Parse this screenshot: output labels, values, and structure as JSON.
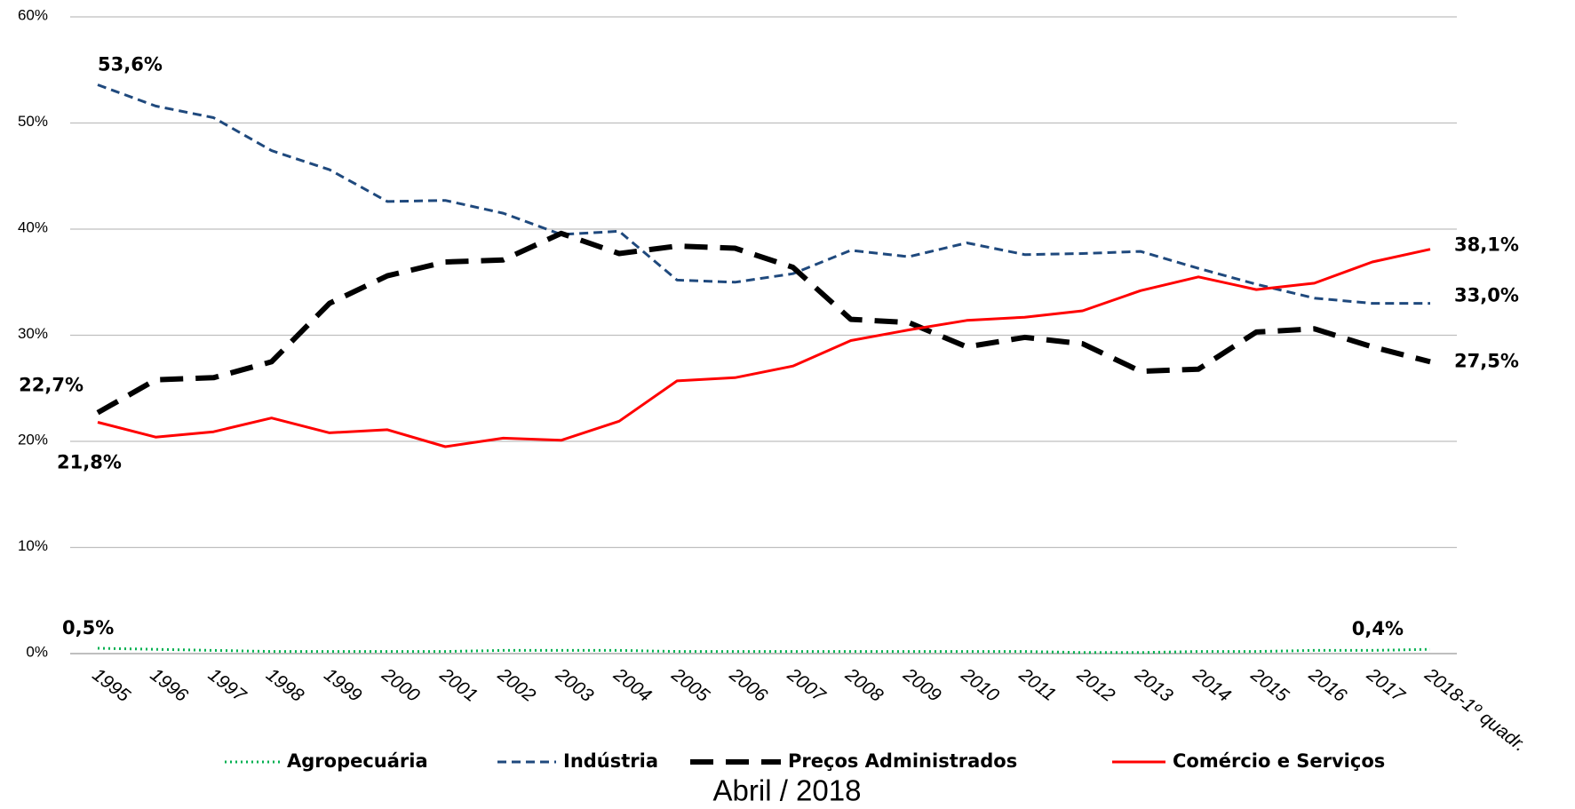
{
  "chart_data": {
    "type": "line",
    "caption": "Abril / 2018",
    "categories": [
      "1995",
      "1996",
      "1997",
      "1998",
      "1999",
      "2000",
      "2001",
      "2002",
      "2003",
      "2004",
      "2005",
      "2006",
      "2007",
      "2008",
      "2009",
      "2010",
      "2011",
      "2012",
      "2013",
      "2014",
      "2015",
      "2016",
      "2017",
      "2018-1º quadr."
    ],
    "ylim": [
      0,
      60
    ],
    "yticks": [
      {
        "value": 0,
        "label": "0%"
      },
      {
        "value": 10,
        "label": "10%"
      },
      {
        "value": 20,
        "label": "20%"
      },
      {
        "value": 30,
        "label": "30%"
      },
      {
        "value": 40,
        "label": "40%"
      },
      {
        "value": 50,
        "label": "50%"
      },
      {
        "value": 60,
        "label": "60%"
      }
    ],
    "grid": true,
    "legend": "bottom",
    "series": [
      {
        "name": "Agropecuária",
        "color": "#00b050",
        "style": "dotted",
        "values": [
          0.5,
          0.4,
          0.3,
          0.2,
          0.2,
          0.2,
          0.2,
          0.3,
          0.3,
          0.3,
          0.2,
          0.2,
          0.2,
          0.2,
          0.2,
          0.2,
          0.2,
          0.1,
          0.1,
          0.2,
          0.2,
          0.3,
          0.3,
          0.4
        ],
        "value_labels": [
          "0,5%",
          null,
          null,
          null,
          null,
          null,
          null,
          null,
          null,
          null,
          null,
          null,
          null,
          null,
          null,
          null,
          null,
          null,
          null,
          null,
          null,
          null,
          null,
          "0,4%"
        ]
      },
      {
        "name": "Indústria",
        "color": "#1f497d",
        "style": "dashed",
        "values": [
          53.6,
          51.6,
          50.5,
          47.4,
          45.6,
          42.6,
          42.7,
          41.5,
          39.5,
          39.8,
          35.2,
          35.0,
          35.8,
          38.0,
          37.4,
          38.7,
          37.6,
          37.7,
          37.9,
          36.3,
          34.8,
          33.5,
          33.0,
          33.0
        ],
        "value_labels": [
          "53,6%",
          null,
          null,
          null,
          null,
          null,
          null,
          null,
          null,
          null,
          null,
          null,
          null,
          null,
          null,
          null,
          null,
          null,
          null,
          null,
          null,
          null,
          null,
          "33,0%"
        ]
      },
      {
        "name": "Preços Administrados",
        "color": "#000000",
        "style": "longdash",
        "values": [
          22.7,
          25.8,
          26.0,
          27.5,
          33.0,
          35.6,
          36.9,
          37.1,
          39.6,
          37.7,
          38.4,
          38.2,
          36.4,
          31.5,
          31.2,
          28.9,
          29.8,
          29.2,
          26.6,
          26.8,
          30.3,
          30.6,
          28.9,
          27.5
        ],
        "value_labels": [
          "22,7%",
          null,
          null,
          null,
          null,
          null,
          null,
          null,
          null,
          null,
          null,
          null,
          null,
          null,
          null,
          null,
          null,
          null,
          null,
          null,
          null,
          null,
          null,
          "27,5%"
        ]
      },
      {
        "name": "Comércio e Serviços",
        "color": "#ff0000",
        "style": "solid",
        "values": [
          21.8,
          20.4,
          20.9,
          22.2,
          20.8,
          21.1,
          19.5,
          20.3,
          20.1,
          21.9,
          25.7,
          26.0,
          27.1,
          29.5,
          30.5,
          31.4,
          31.7,
          32.3,
          34.2,
          35.5,
          34.3,
          34.9,
          36.9,
          38.1
        ],
        "value_labels": [
          "21,8%",
          null,
          null,
          null,
          null,
          null,
          null,
          null,
          null,
          null,
          null,
          null,
          null,
          null,
          null,
          null,
          null,
          null,
          null,
          null,
          null,
          null,
          null,
          "38,1%"
        ]
      }
    ]
  }
}
